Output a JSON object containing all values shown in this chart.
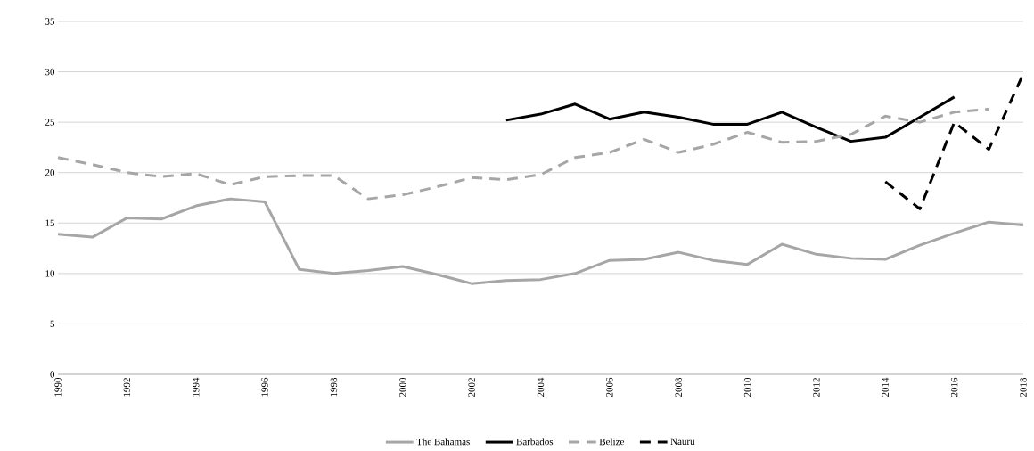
{
  "chart_data": {
    "type": "line",
    "x": [
      1990,
      1991,
      1992,
      1993,
      1994,
      1995,
      1996,
      1997,
      1998,
      1999,
      2000,
      2001,
      2002,
      2003,
      2004,
      2005,
      2006,
      2007,
      2008,
      2009,
      2010,
      2011,
      2012,
      2013,
      2014,
      2015,
      2016,
      2017,
      2018
    ],
    "series": [
      {
        "name": "The Bahamas",
        "color": "#a6a6a6",
        "line_style": "solid",
        "values": [
          13.9,
          13.6,
          15.5,
          15.4,
          16.7,
          17.4,
          17.1,
          10.4,
          10.0,
          10.3,
          10.7,
          9.9,
          9.0,
          9.3,
          9.4,
          10.0,
          11.3,
          11.4,
          12.1,
          11.3,
          10.9,
          12.9,
          11.9,
          11.5,
          11.4,
          12.8,
          14.0,
          15.1,
          14.8
        ]
      },
      {
        "name": "Barbados",
        "color": "#000000",
        "line_style": "solid",
        "values": [
          null,
          null,
          null,
          null,
          null,
          null,
          null,
          null,
          null,
          null,
          null,
          null,
          null,
          25.2,
          25.8,
          26.8,
          25.3,
          26.0,
          25.5,
          24.8,
          24.8,
          26.0,
          24.5,
          23.1,
          23.5,
          25.5,
          27.5,
          null,
          null
        ]
      },
      {
        "name": "Belize",
        "color": "#a6a6a6",
        "line_style": "dashed",
        "values": [
          21.5,
          20.8,
          20.0,
          19.6,
          19.9,
          18.8,
          19.6,
          19.7,
          19.7,
          17.4,
          17.8,
          18.6,
          19.5,
          19.3,
          19.8,
          21.5,
          22.0,
          23.3,
          22.0,
          22.8,
          24.0,
          23.0,
          23.1,
          23.8,
          25.6,
          25.0,
          26.0,
          26.3,
          null
        ]
      },
      {
        "name": "Nauru",
        "color": "#000000",
        "line_style": "dashed",
        "values": [
          null,
          null,
          null,
          null,
          null,
          null,
          null,
          null,
          null,
          null,
          null,
          null,
          null,
          null,
          null,
          null,
          null,
          null,
          null,
          null,
          null,
          null,
          null,
          null,
          19.1,
          16.4,
          25.0,
          22.3,
          29.8
        ]
      }
    ],
    "xlim": [
      1990,
      2018
    ],
    "xticks": [
      1990,
      1992,
      1994,
      1996,
      1998,
      2000,
      2002,
      2004,
      2006,
      2008,
      2010,
      2012,
      2014,
      2016,
      2018
    ],
    "ylim": [
      0,
      35
    ],
    "yticks": [
      0,
      5,
      10,
      15,
      20,
      25,
      30,
      35
    ],
    "grid": "y",
    "legend": "bottom"
  }
}
